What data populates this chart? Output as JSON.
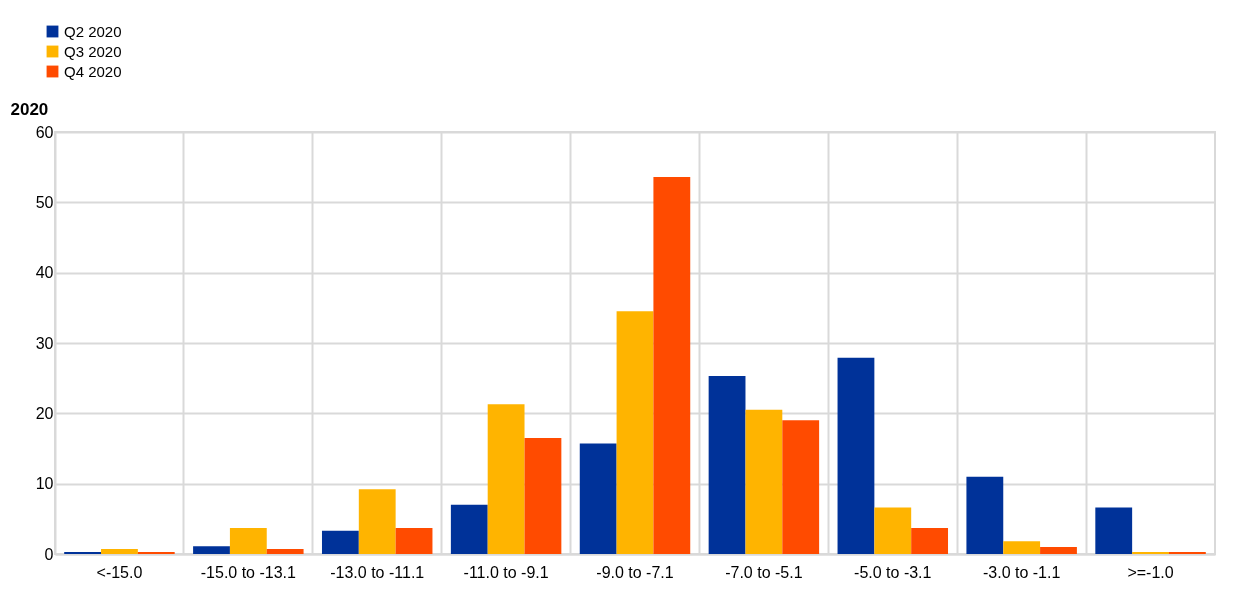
{
  "chart_data": {
    "type": "bar",
    "ylabel": "2020",
    "categories": [
      "<-15.0",
      "-15.0 to -13.1",
      "-13.0 to -11.1",
      "-11.0 to -9.1",
      "-9.0 to -7.1",
      "-7.0 to -5.1",
      "-5.0 to -3.1",
      "-3.0 to -1.1",
      ">=-1.0"
    ],
    "series": [
      {
        "name": "Q2 2020",
        "color": "#003299",
        "values": [
          0.3,
          1.1,
          3.3,
          7.0,
          15.7,
          25.3,
          27.9,
          11.0,
          6.6
        ]
      },
      {
        "name": "Q3 2020",
        "color": "#ffb400",
        "values": [
          0.7,
          3.7,
          9.2,
          21.3,
          34.5,
          20.5,
          6.6,
          1.8,
          0.3
        ]
      },
      {
        "name": "Q4 2020",
        "color": "#ff4b00",
        "values": [
          0.3,
          0.7,
          3.7,
          16.5,
          53.6,
          19.0,
          3.7,
          1.0,
          0.3
        ]
      }
    ],
    "ylim": [
      0,
      60
    ],
    "yticks": [
      0,
      10,
      20,
      30,
      40,
      50,
      60
    ],
    "grid": true,
    "legend": "top left"
  }
}
